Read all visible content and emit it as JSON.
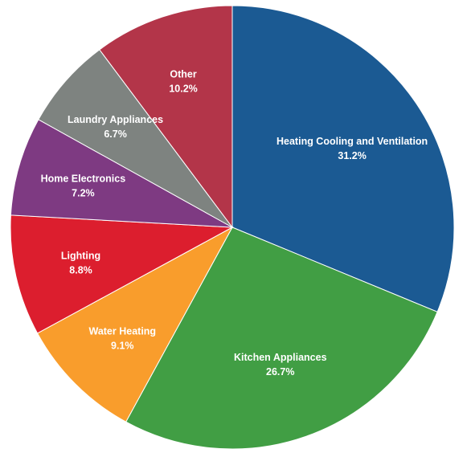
{
  "chart_data": {
    "type": "pie",
    "title": "",
    "slices": [
      {
        "label": "Heating Cooling and Ventilation",
        "value": 31.2,
        "value_label": "31.2%",
        "color": "#1b5a93"
      },
      {
        "label": "Kitchen Appliances",
        "value": 26.7,
        "value_label": "26.7%",
        "color": "#419e44"
      },
      {
        "label": "Water Heating",
        "value": 9.1,
        "value_label": "9.1%",
        "color": "#f99d2c"
      },
      {
        "label": "Lighting",
        "value": 8.8,
        "value_label": "8.8%",
        "color": "#dc1e2e"
      },
      {
        "label": "Home Electronics",
        "value": 7.2,
        "value_label": "7.2%",
        "color": "#7e3a82"
      },
      {
        "label": "Laundry Appliances",
        "value": 6.7,
        "value_label": "6.7%",
        "color": "#7e8380"
      },
      {
        "label": "Other",
        "value": 10.2,
        "value_label": "10.2%",
        "color": "#b33549"
      }
    ]
  }
}
